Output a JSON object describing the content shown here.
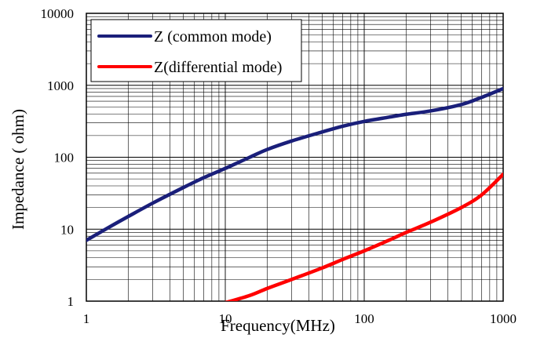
{
  "chart_data": {
    "type": "line",
    "xlabel": "Frequency(MHz)",
    "ylabel": "Impedance ( ohm)",
    "xscale": "log",
    "yscale": "log",
    "xlim": [
      1,
      1000
    ],
    "ylim": [
      1,
      10000
    ],
    "grid": true,
    "legend_position": "top-left",
    "x_ticks": [
      "1",
      "10",
      "100",
      "1000"
    ],
    "y_ticks": [
      "1",
      "10",
      "100",
      "1000",
      "10000"
    ],
    "series": [
      {
        "name": "Z (common mode)",
        "color": "#1a1f7a",
        "x": [
          1,
          1.5,
          2,
          3,
          5,
          7,
          10,
          15,
          20,
          30,
          50,
          70,
          100,
          150,
          200,
          300,
          500,
          700,
          1000
        ],
        "y": [
          7,
          11,
          15,
          23,
          38,
          52,
          70,
          100,
          128,
          168,
          225,
          270,
          315,
          360,
          395,
          440,
          540,
          680,
          900
        ]
      },
      {
        "name": "Z(differential mode)",
        "color": "#ff0000",
        "x": [
          10,
          15,
          20,
          30,
          50,
          70,
          100,
          150,
          200,
          300,
          500,
          700,
          1000
        ],
        "y": [
          0.95,
          1.2,
          1.5,
          2.0,
          2.9,
          3.8,
          5.0,
          7.0,
          9.0,
          12.5,
          20,
          30,
          58
        ]
      }
    ]
  }
}
